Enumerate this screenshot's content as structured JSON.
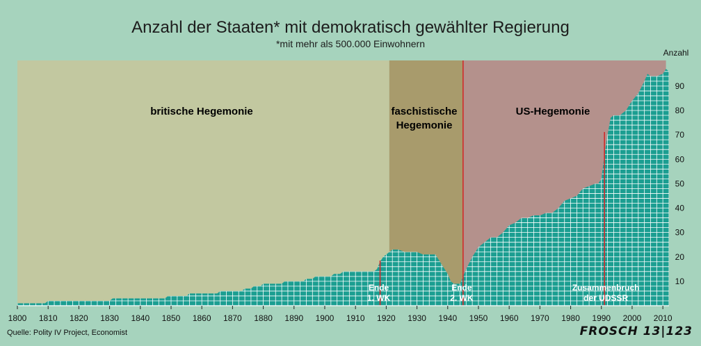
{
  "title": "Anzahl der Staaten* mit demokratisch gewählter Regierung",
  "subtitle": "*mit mehr als 500.000 Einwohnern",
  "source": "Quelle: Polity IV Project, Economist",
  "signature": "FROSCH 13|123",
  "colors": {
    "background": "#a6d3bd",
    "area_fill": "#1b9e91",
    "area_grid": "#ffffff",
    "british_band": "#c5c79c",
    "fascist_band": "#a89563",
    "us_band": "#b68a86",
    "marker_line": "#d02a2a"
  },
  "chart_data": {
    "type": "area",
    "title": "Anzahl der Staaten* mit demokratisch gewählter Regierung",
    "subtitle": "*mit mehr als 500.000 Einwohnern",
    "xlabel": "",
    "ylabel": "Anzahl",
    "xlim": [
      1800,
      2012
    ],
    "ylim": [
      0,
      100
    ],
    "grid": true,
    "x_ticks": [
      1800,
      1810,
      1820,
      1830,
      1840,
      1850,
      1860,
      1870,
      1880,
      1890,
      1900,
      1910,
      1920,
      1930,
      1940,
      1950,
      1960,
      1970,
      1980,
      1990,
      2000,
      2010
    ],
    "y_ticks": [
      10,
      20,
      30,
      40,
      50,
      60,
      70,
      80,
      90
    ],
    "x": [
      1800,
      1809,
      1810,
      1818,
      1819,
      1830,
      1831,
      1848,
      1849,
      1850,
      1855,
      1856,
      1860,
      1865,
      1866,
      1870,
      1873,
      1874,
      1876,
      1877,
      1879,
      1880,
      1886,
      1887,
      1890,
      1893,
      1894,
      1896,
      1897,
      1900,
      1902,
      1903,
      1905,
      1906,
      1910,
      1912,
      1913,
      1916,
      1917,
      1918,
      1919,
      1921,
      1922,
      1924,
      1926,
      1928,
      1930,
      1932,
      1934,
      1936,
      1938,
      1940,
      1941,
      1942,
      1943,
      1944,
      1945,
      1946,
      1948,
      1950,
      1952,
      1954,
      1956,
      1958,
      1960,
      1962,
      1964,
      1966,
      1968,
      1970,
      1972,
      1974,
      1976,
      1978,
      1980,
      1982,
      1984,
      1986,
      1988,
      1989,
      1990,
      1991,
      1992,
      1993,
      1994,
      1996,
      1998,
      2000,
      2002,
      2004,
      2005,
      2006,
      2008,
      2010,
      2011,
      2012
    ],
    "values": [
      1,
      1,
      2,
      2,
      2,
      2,
      3,
      3,
      4,
      4,
      4,
      5,
      5,
      5,
      6,
      6,
      6,
      7,
      7,
      8,
      8,
      9,
      9,
      10,
      10,
      10,
      11,
      11,
      12,
      12,
      12,
      13,
      13,
      14,
      14,
      14,
      14,
      14,
      15,
      18,
      20,
      22,
      23,
      23,
      22,
      22,
      22,
      21,
      21,
      21,
      17,
      13,
      10,
      9,
      9,
      9,
      12,
      15,
      20,
      24,
      26,
      28,
      28,
      30,
      33,
      34,
      36,
      36,
      37,
      37,
      38,
      38,
      40,
      43,
      44,
      45,
      48,
      49,
      50,
      50,
      52,
      62,
      70,
      77,
      78,
      78,
      80,
      84,
      87,
      92,
      95,
      94,
      94,
      95,
      97,
      96
    ],
    "eras": [
      {
        "label": "britische Hegemonie",
        "from": 1800,
        "to": 1921
      },
      {
        "label": "faschistische Hegemonie",
        "from": 1921,
        "to": 1945
      },
      {
        "label": "US-Hegemonie",
        "from": 1945,
        "to": 2011
      }
    ],
    "annotations": [
      {
        "x": 1918,
        "label": "Ende 1. WK"
      },
      {
        "x": 1945,
        "label": "Ende 2. WK"
      },
      {
        "x": 1991,
        "label": "Zusammenbruch der UDSSR"
      }
    ]
  }
}
